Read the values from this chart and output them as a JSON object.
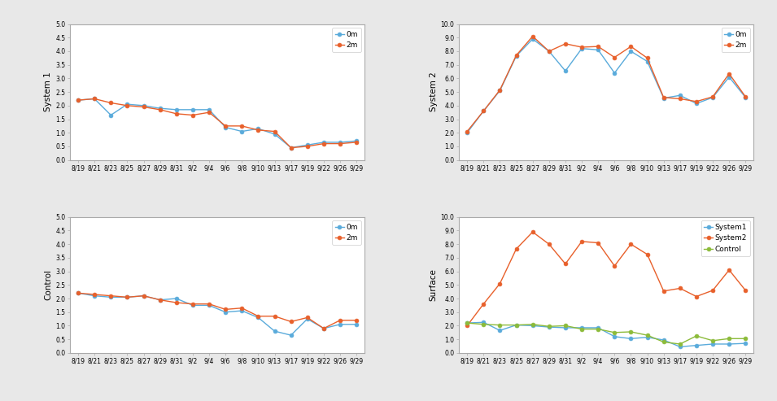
{
  "x_labels": [
    "8/19",
    "8/21",
    "8/23",
    "8/25",
    "8/27",
    "8/29",
    "8/31",
    "9/2",
    "9/4",
    "9/6",
    "9/8",
    "9/10",
    "9/13",
    "9/17",
    "9/19",
    "9/22",
    "9/26",
    "9/29"
  ],
  "sys1_0m": [
    2.2,
    2.25,
    1.65,
    2.05,
    2.0,
    1.9,
    1.85,
    1.85,
    1.85,
    1.2,
    1.05,
    1.15,
    0.95,
    0.45,
    0.55,
    0.65,
    0.65,
    0.7
  ],
  "sys1_2m": [
    2.2,
    2.25,
    2.1,
    2.0,
    1.95,
    1.85,
    1.7,
    1.65,
    1.75,
    1.25,
    1.25,
    1.1,
    1.05,
    0.45,
    0.5,
    0.6,
    0.6,
    0.65
  ],
  "sys2_0m": [
    2.0,
    3.6,
    5.1,
    7.65,
    8.9,
    8.0,
    6.55,
    8.2,
    8.1,
    6.4,
    8.0,
    7.25,
    4.55,
    4.75,
    4.15,
    4.6,
    6.1,
    4.6
  ],
  "sys2_2m": [
    2.1,
    3.6,
    5.15,
    7.7,
    9.1,
    8.0,
    8.55,
    8.3,
    8.35,
    7.55,
    8.35,
    7.5,
    4.6,
    4.5,
    4.3,
    4.65,
    6.35,
    4.65
  ],
  "ctrl_0m": [
    2.2,
    2.1,
    2.05,
    2.05,
    2.1,
    1.95,
    2.0,
    1.75,
    1.75,
    1.5,
    1.55,
    1.3,
    0.8,
    0.65,
    1.25,
    0.9,
    1.05,
    1.05
  ],
  "ctrl_2m": [
    2.2,
    2.15,
    2.1,
    2.05,
    2.1,
    1.95,
    1.85,
    1.8,
    1.8,
    1.6,
    1.65,
    1.35,
    1.35,
    1.15,
    1.3,
    0.9,
    1.2,
    1.2
  ],
  "surf_sys1": [
    2.2,
    2.25,
    1.65,
    2.05,
    2.0,
    1.9,
    1.85,
    1.85,
    1.85,
    1.2,
    1.05,
    1.15,
    0.95,
    0.45,
    0.55,
    0.65,
    0.65,
    0.7
  ],
  "surf_sys2": [
    2.0,
    3.6,
    5.1,
    7.65,
    8.9,
    8.0,
    6.55,
    8.2,
    8.1,
    6.4,
    8.0,
    7.25,
    4.55,
    4.75,
    4.15,
    4.6,
    6.1,
    4.6
  ],
  "surf_ctrl": [
    2.2,
    2.1,
    2.05,
    2.05,
    2.1,
    1.95,
    2.0,
    1.75,
    1.75,
    1.5,
    1.55,
    1.3,
    0.8,
    0.65,
    1.25,
    0.9,
    1.05,
    1.05
  ],
  "color_0m": "#5aabdb",
  "color_2m": "#e8602b",
  "color_sys1": "#5aabdb",
  "color_sys2": "#e8602b",
  "color_ctrl": "#8cbb3a",
  "marker": "o",
  "markersize": 3.5,
  "linewidth": 1.0,
  "ylim_small": [
    0.0,
    5.0
  ],
  "ylim_large": [
    0.0,
    10.0
  ],
  "yticks_small": [
    0.0,
    0.5,
    1.0,
    1.5,
    2.0,
    2.5,
    3.0,
    3.5,
    4.0,
    4.5,
    5.0
  ],
  "yticks_large": [
    0.0,
    1.0,
    2.0,
    3.0,
    4.0,
    5.0,
    6.0,
    7.0,
    8.0,
    9.0,
    10.0
  ],
  "ylabel_sys1": "System 1",
  "ylabel_sys2": "System 2",
  "ylabel_ctrl": "Control",
  "ylabel_surf": "Surface",
  "legend_0m": "0m",
  "legend_2m": "2m",
  "legend_sys1": "System1",
  "legend_sys2": "System2",
  "legend_ctrl": "Control",
  "fontsize_tick": 5.5,
  "fontsize_label": 7.5,
  "fontsize_legend": 6.5,
  "fig_bg": "#e8e8e8",
  "plot_bg": "#ffffff"
}
